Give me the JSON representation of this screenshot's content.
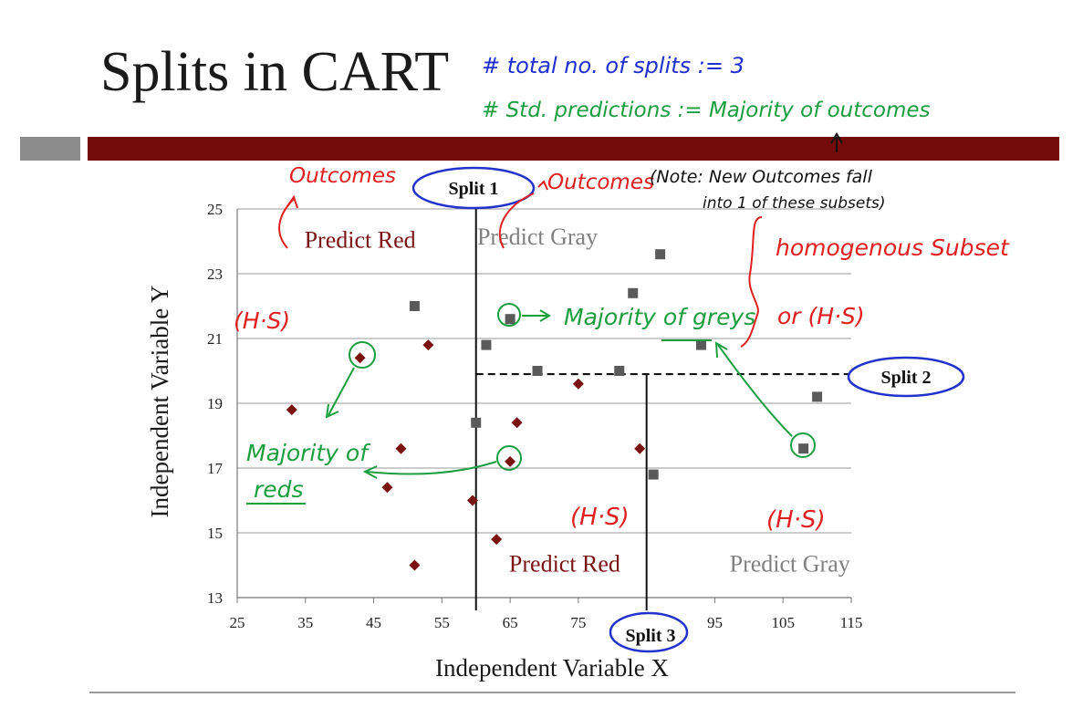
{
  "slide": {
    "title": "Splits in CART",
    "colors": {
      "title_bar": "#740b0b",
      "accent_box": "#8c8c8c",
      "rule": "#9a9a9a"
    }
  },
  "chart_data": {
    "type": "scatter",
    "xlabel": "Independent Variable X",
    "ylabel": "Independent Variable Y",
    "xlim": [
      25,
      115
    ],
    "ylim": [
      13,
      25
    ],
    "xticks": [
      25,
      35,
      45,
      55,
      65,
      75,
      85,
      95,
      105,
      115
    ],
    "yticks": [
      13,
      15,
      17,
      19,
      21,
      23,
      25
    ],
    "grid": "horizontal",
    "series": [
      {
        "marker": "diamond",
        "color": "#7b1313",
        "points": [
          [
            33,
            18.8
          ],
          [
            43,
            20.4
          ],
          [
            47,
            16.4
          ],
          [
            49,
            17.6
          ],
          [
            51,
            14.0
          ],
          [
            53,
            20.8
          ],
          [
            59.5,
            16.0
          ],
          [
            63,
            14.8
          ],
          [
            65,
            17.2
          ],
          [
            66,
            18.4
          ],
          [
            75,
            19.6
          ],
          [
            84,
            17.6
          ]
        ]
      },
      {
        "marker": "square",
        "color": "#5a5a5a",
        "points": [
          [
            51,
            22.0
          ],
          [
            60,
            18.4
          ],
          [
            61.5,
            20.8
          ],
          [
            65,
            21.6
          ],
          [
            69,
            20.0
          ],
          [
            81,
            20.0
          ],
          [
            83,
            22.4
          ],
          [
            86,
            16.8
          ],
          [
            87,
            23.6
          ],
          [
            93,
            20.8
          ],
          [
            108,
            17.6
          ],
          [
            110,
            19.2
          ]
        ]
      }
    ],
    "splits": [
      {
        "label": "Split 1",
        "orientation": "vertical",
        "at": 60,
        "range": [
          13,
          25
        ],
        "style": "solid"
      },
      {
        "label": "Split 2",
        "orientation": "horizontal",
        "at": 19.9,
        "range": [
          60,
          115
        ],
        "style": "dashed"
      },
      {
        "label": "Split 3",
        "orientation": "vertical",
        "at": 85,
        "range": [
          13,
          19.9
        ],
        "style": "solid"
      }
    ],
    "region_labels": [
      {
        "text": "Predict Red",
        "x": 43,
        "y": 23.8,
        "color": "#7b1313"
      },
      {
        "text": "Predict Gray",
        "x": 69,
        "y": 23.9,
        "color": "#808080"
      },
      {
        "text": "Predict Red",
        "x": 73,
        "y": 13.8,
        "color": "#7b1313"
      },
      {
        "text": "Predict Gray",
        "x": 106,
        "y": 13.8,
        "color": "#808080"
      }
    ]
  },
  "annotations": {
    "total_splits": "# total no. of splits := 3",
    "std_predictions": "# Std. predictions := Majority of outcomes",
    "outcomes_left": "Outcomes",
    "outcomes_right": "Outcomes",
    "note_line1": "(Note: New Outcomes fall",
    "note_line2": "into 1 of these subsets)",
    "homogenous_subset": "homogenous Subset",
    "or_hs": "or (H·S)",
    "hs_left": "(H·S)",
    "hs_bottom_mid": "(H·S)",
    "hs_bottom_right": "(H·S)",
    "majority_greys": "Majority of greys",
    "majority_reds_1": "Majority of",
    "majority_reds_2": "reds"
  }
}
